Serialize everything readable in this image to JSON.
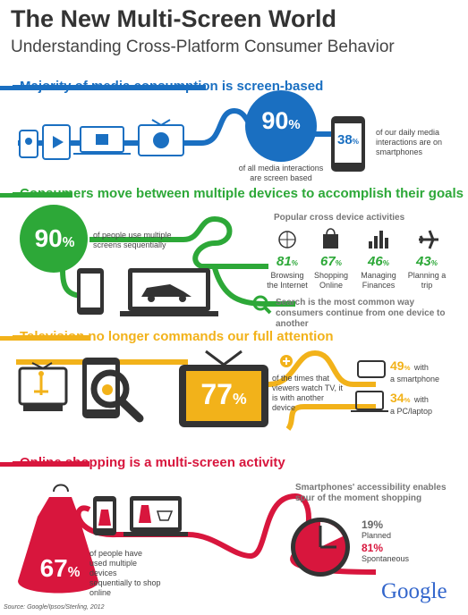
{
  "header": {
    "title": "The New Multi-Screen World",
    "subtitle": "Understanding Cross-Platform Consumer Behavior"
  },
  "colors": {
    "blue": "#1a6fc1",
    "green": "#2da838",
    "yellow": "#f2b21a",
    "red": "#d8163d",
    "dark": "#333333"
  },
  "section1": {
    "heading": "Majority of media consumption is screen-based",
    "big_num": "90",
    "big_unit": "%",
    "big_caption": "of all media interactions are screen based",
    "phone_num": "38",
    "phone_unit": "%",
    "phone_caption": "of our daily media interactions are on smartphones"
  },
  "section2": {
    "heading": "Consumers move between multiple devices to accomplish their goals",
    "big_num": "90",
    "big_unit": "%",
    "big_caption": "of people use multiple screens sequentially",
    "activities_title": "Popular cross device activities",
    "activities": [
      {
        "icon": "globe-icon",
        "value": "81",
        "unit": "%",
        "label": "Browsing the Internet"
      },
      {
        "icon": "shopping-bag-icon",
        "value": "67",
        "unit": "%",
        "label": "Shopping Online"
      },
      {
        "icon": "bar-chart-icon",
        "value": "46",
        "unit": "%",
        "label": "Managing Finances"
      },
      {
        "icon": "airplane-icon",
        "value": "43",
        "unit": "%",
        "label": "Planning a trip"
      }
    ],
    "search_note": "Search is the most common way consumers continue from one device to another"
  },
  "section3": {
    "heading": "Television no longer commands our full attention",
    "big_num": "77",
    "big_unit": "%",
    "big_caption": "of the times that viewers watch TV, it is with another device",
    "stat1_num": "49",
    "stat1_unit": "%",
    "stat1_with": "with",
    "stat1_caption": "a smartphone",
    "stat2_num": "34",
    "stat2_unit": "%",
    "stat2_with": "with",
    "stat2_caption": "a PC/laptop"
  },
  "section4": {
    "heading": "Online shopping is a multi-screen activity",
    "big_num": "67",
    "big_unit": "%",
    "big_caption": "of people have used multiple devices sequentially to shop online",
    "spur_title": "Smartphones' accessibility enables spur of the moment shopping",
    "planned_pct": "19%",
    "planned_label": "Planned",
    "spont_pct": "81%",
    "spont_label": "Spontaneous"
  },
  "footer": {
    "source": "Source: Google/Ipsos/Sterling, 2012",
    "logo": "Google"
  }
}
